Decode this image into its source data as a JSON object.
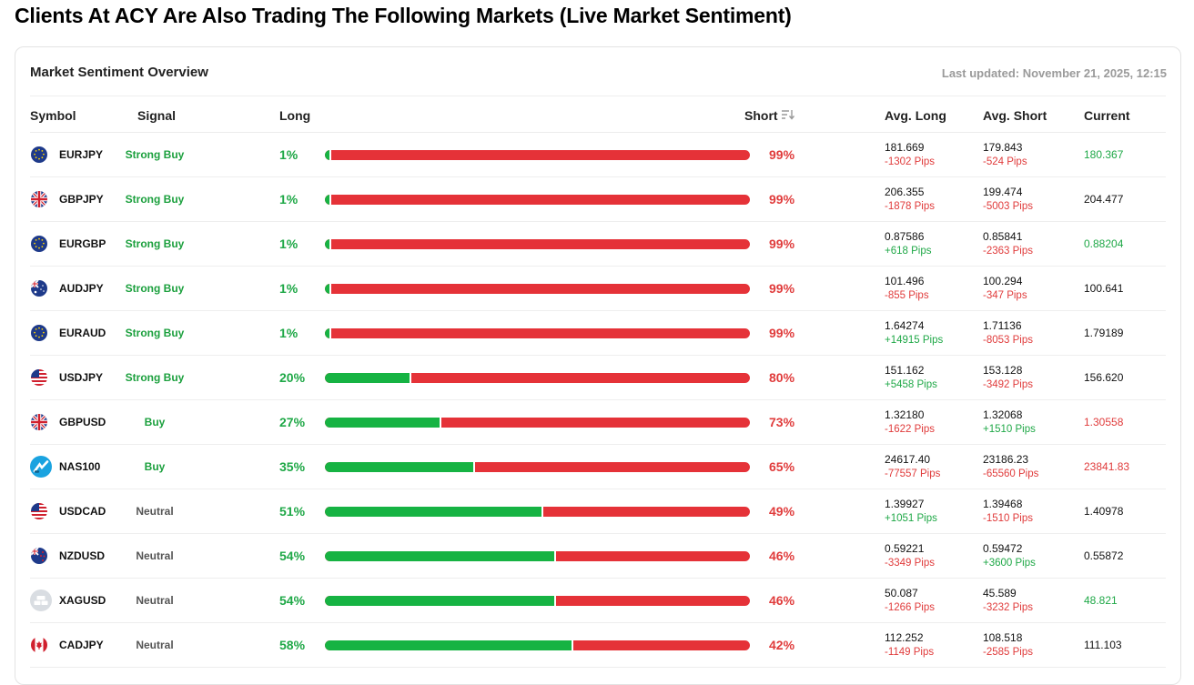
{
  "page_title": "Clients At ACY Are Also Trading The Following Markets (Live Market Sentiment)",
  "card": {
    "title": "Market Sentiment Overview",
    "last_updated": "Last updated: November 21, 2025, 12:15"
  },
  "columns": {
    "symbol": "Symbol",
    "signal": "Signal",
    "long": "Long",
    "short": "Short",
    "avg_long": "Avg. Long",
    "avg_short": "Avg. Short",
    "current": "Current"
  },
  "colors": {
    "long": "#16b343",
    "short": "#e53238",
    "buy_text": "#1ca03e",
    "neutral_text": "#555555"
  },
  "rows": [
    {
      "symbol": "EURJPY",
      "flag": "eu-flag-icon",
      "signal": "Strong Buy",
      "signal_type": "buy",
      "long": "1%",
      "long_value": 1,
      "short": "99%",
      "avg_long": "181.669",
      "avg_long_pips": "-1302 Pips",
      "avg_short": "179.843",
      "avg_short_pips": "-524 Pips",
      "current": "180.367",
      "current_state": "up"
    },
    {
      "symbol": "GBPJPY",
      "flag": "uk-flag-icon",
      "signal": "Strong Buy",
      "signal_type": "buy",
      "long": "1%",
      "long_value": 1,
      "short": "99%",
      "avg_long": "206.355",
      "avg_long_pips": "-1878 Pips",
      "avg_short": "199.474",
      "avg_short_pips": "-5003 Pips",
      "current": "204.477",
      "current_state": "flat"
    },
    {
      "symbol": "EURGBP",
      "flag": "eu-flag-icon",
      "signal": "Strong Buy",
      "signal_type": "buy",
      "long": "1%",
      "long_value": 1,
      "short": "99%",
      "avg_long": "0.87586",
      "avg_long_pips": "+618 Pips",
      "avg_short": "0.85841",
      "avg_short_pips": "-2363 Pips",
      "current": "0.88204",
      "current_state": "up"
    },
    {
      "symbol": "AUDJPY",
      "flag": "au-flag-icon",
      "signal": "Strong Buy",
      "signal_type": "buy",
      "long": "1%",
      "long_value": 1,
      "short": "99%",
      "avg_long": "101.496",
      "avg_long_pips": "-855 Pips",
      "avg_short": "100.294",
      "avg_short_pips": "-347 Pips",
      "current": "100.641",
      "current_state": "flat"
    },
    {
      "symbol": "EURAUD",
      "flag": "eu-flag-icon",
      "signal": "Strong Buy",
      "signal_type": "buy",
      "long": "1%",
      "long_value": 1,
      "short": "99%",
      "avg_long": "1.64274",
      "avg_long_pips": "+14915 Pips",
      "avg_short": "1.71136",
      "avg_short_pips": "-8053 Pips",
      "current": "1.79189",
      "current_state": "flat"
    },
    {
      "symbol": "USDJPY",
      "flag": "us-flag-icon",
      "signal": "Strong Buy",
      "signal_type": "buy",
      "long": "20%",
      "long_value": 20,
      "short": "80%",
      "avg_long": "151.162",
      "avg_long_pips": "+5458 Pips",
      "avg_short": "153.128",
      "avg_short_pips": "-3492 Pips",
      "current": "156.620",
      "current_state": "flat"
    },
    {
      "symbol": "GBPUSD",
      "flag": "uk-flag-icon",
      "signal": "Buy",
      "signal_type": "buy",
      "long": "27%",
      "long_value": 27,
      "short": "73%",
      "avg_long": "1.32180",
      "avg_long_pips": "-1622 Pips",
      "avg_short": "1.32068",
      "avg_short_pips": "+1510 Pips",
      "current": "1.30558",
      "current_state": "down"
    },
    {
      "symbol": "NAS100",
      "flag": "nas100-icon",
      "signal": "Buy",
      "signal_type": "buy",
      "long": "35%",
      "long_value": 35,
      "short": "65%",
      "avg_long": "24617.40",
      "avg_long_pips": "-77557 Pips",
      "avg_short": "23186.23",
      "avg_short_pips": "-65560 Pips",
      "current": "23841.83",
      "current_state": "down"
    },
    {
      "symbol": "USDCAD",
      "flag": "us-flag-icon",
      "signal": "Neutral",
      "signal_type": "neutral",
      "long": "51%",
      "long_value": 51,
      "short": "49%",
      "avg_long": "1.39927",
      "avg_long_pips": "+1051 Pips",
      "avg_short": "1.39468",
      "avg_short_pips": "-1510 Pips",
      "current": "1.40978",
      "current_state": "flat"
    },
    {
      "symbol": "NZDUSD",
      "flag": "nz-flag-icon",
      "signal": "Neutral",
      "signal_type": "neutral",
      "long": "54%",
      "long_value": 54,
      "short": "46%",
      "avg_long": "0.59221",
      "avg_long_pips": "-3349 Pips",
      "avg_short": "0.59472",
      "avg_short_pips": "+3600 Pips",
      "current": "0.55872",
      "current_state": "flat"
    },
    {
      "symbol": "XAGUSD",
      "flag": "silver-icon",
      "signal": "Neutral",
      "signal_type": "neutral",
      "long": "54%",
      "long_value": 54,
      "short": "46%",
      "avg_long": "50.087",
      "avg_long_pips": "-1266 Pips",
      "avg_short": "45.589",
      "avg_short_pips": "-3232 Pips",
      "current": "48.821",
      "current_state": "up"
    },
    {
      "symbol": "CADJPY",
      "flag": "ca-flag-icon",
      "signal": "Neutral",
      "signal_type": "neutral",
      "long": "58%",
      "long_value": 58,
      "short": "42%",
      "avg_long": "112.252",
      "avg_long_pips": "-1149 Pips",
      "avg_short": "108.518",
      "avg_short_pips": "-2585 Pips",
      "current": "111.103",
      "current_state": "flat"
    }
  ]
}
